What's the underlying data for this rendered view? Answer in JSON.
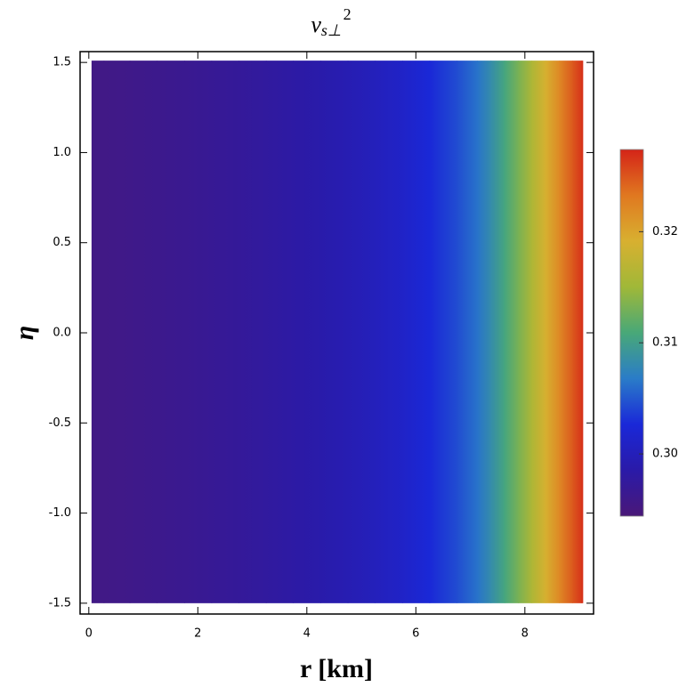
{
  "chart_data": {
    "type": "density",
    "title": {
      "base": "v",
      "sub": "s⊥",
      "sup": "2"
    },
    "x_label": "r [km]",
    "y_label": "η",
    "x": [
      0.05,
      0.5,
      1,
      1.5,
      2,
      2.5,
      3,
      3.5,
      4,
      4.5,
      5,
      5.5,
      6,
      6.5,
      7,
      7.25,
      7.5,
      7.75,
      8,
      8.25,
      8.5,
      8.75,
      9,
      9.06
    ],
    "values": [
      0.2955,
      0.2957,
      0.296,
      0.2963,
      0.2966,
      0.297,
      0.2974,
      0.2979,
      0.2984,
      0.299,
      0.2997,
      0.3006,
      0.3018,
      0.3033,
      0.3055,
      0.3072,
      0.3094,
      0.3118,
      0.3145,
      0.3175,
      0.3205,
      0.3235,
      0.3262,
      0.3268
    ],
    "y_extent": [
      -1.5,
      1.51
    ],
    "xlim": [
      -0.16,
      9.26
    ],
    "ylim": [
      -1.56,
      1.56
    ],
    "xticks": [
      0,
      2,
      4,
      6,
      8
    ],
    "yticks": [
      {
        "value": -1.5,
        "label": "-1.5"
      },
      {
        "value": -1,
        "label": "-1.0"
      },
      {
        "value": -0.5,
        "label": "-0.5"
      },
      {
        "value": 0,
        "label": "0.0"
      },
      {
        "value": 0.5,
        "label": "0.5"
      },
      {
        "value": 1,
        "label": "1.0"
      },
      {
        "value": 1.5,
        "label": "1.5"
      }
    ],
    "colorbar_lim": [
      0.2944,
      0.3274
    ],
    "colorbar_ticks": [
      {
        "value": 0.3,
        "label": "0.30"
      },
      {
        "value": 0.31,
        "label": "0.31"
      },
      {
        "value": 0.32,
        "label": "0.32"
      }
    ],
    "colormap": [
      "#4a1878",
      "#2a1aa8",
      "#1a28d8",
      "#2a7cc8",
      "#48a878",
      "#a0b838",
      "#d8b030",
      "#e07820",
      "#d42418"
    ]
  }
}
